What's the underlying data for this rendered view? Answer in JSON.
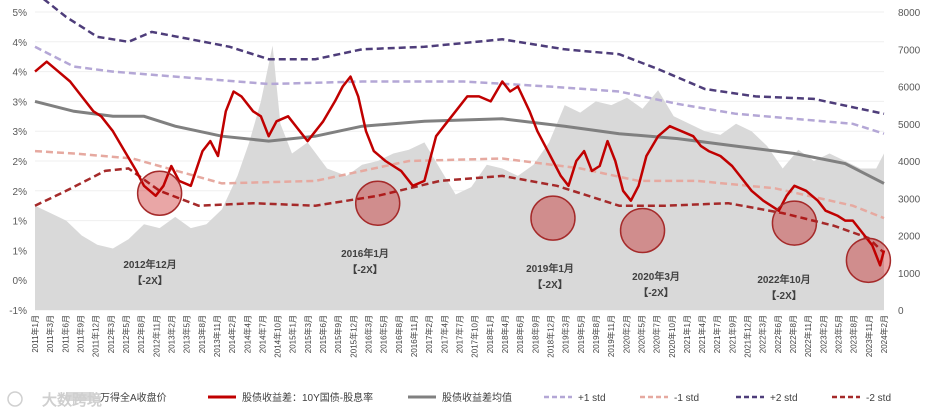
{
  "chart_data": {
    "type": "line",
    "x_labels": [
      "2011年1月",
      "2011年3月",
      "2011年6月",
      "2011年9月",
      "2011年12月",
      "2012年3月",
      "2012年5月",
      "2012年8月",
      "2012年11月",
      "2013年2月",
      "2013年5月",
      "2013年8月",
      "2013年11月",
      "2014年2月",
      "2014年4月",
      "2014年7月",
      "2014年10月",
      "2015年1月",
      "2015年3月",
      "2015年6月",
      "2015年9月",
      "2015年12月",
      "2016年3月",
      "2016年5月",
      "2016年8月",
      "2016年11月",
      "2017年2月",
      "2017年4月",
      "2017年7月",
      "2017年10月",
      "2018年1月",
      "2018年4月",
      "2018年6月",
      "2018年9月",
      "2018年12月",
      "2019年3月",
      "2019年5月",
      "2019年8月",
      "2019年11月",
      "2020年2月",
      "2020年5月",
      "2020年7月",
      "2020年10月",
      "2021年1月",
      "2021年4月",
      "2021年7月",
      "2021年9月",
      "2021年12月",
      "2022年3月",
      "2022年6月",
      "2022年8月",
      "2022年11月",
      "2023年2月",
      "2023年5月",
      "2023年8月",
      "2023年11月",
      "2024年2月"
    ],
    "left_axis": {
      "ticks": [
        "5%",
        "4%",
        "4%",
        "3%",
        "3%",
        "2%",
        "2%",
        "1%",
        "1%",
        "0%",
        "-1%"
      ]
    },
    "right_axis": {
      "ticks": [
        "8000",
        "7000",
        "6000",
        "5000",
        "4000",
        "3000",
        "2000",
        "1000",
        "0"
      ],
      "range": [
        0,
        8000
      ]
    },
    "left_range_pct": [
      -1,
      5
    ],
    "series": [
      {
        "name": "万得全A收盘价",
        "type": "area",
        "axis": "right",
        "color": "#d9d9d9",
        "points": [
          [
            0,
            2800
          ],
          [
            4,
            2600
          ],
          [
            8,
            2400
          ],
          [
            12,
            2000
          ],
          [
            16,
            1750
          ],
          [
            20,
            1650
          ],
          [
            24,
            1900
          ],
          [
            28,
            2300
          ],
          [
            32,
            2200
          ],
          [
            36,
            2500
          ],
          [
            40,
            2200
          ],
          [
            44,
            2300
          ],
          [
            48,
            2700
          ],
          [
            52,
            3600
          ],
          [
            55,
            4500
          ],
          [
            58,
            5600
          ],
          [
            61,
            7100
          ],
          [
            63,
            5000
          ],
          [
            66,
            4200
          ],
          [
            70,
            4500
          ],
          [
            75,
            3800
          ],
          [
            80,
            3600
          ],
          [
            84,
            3900
          ],
          [
            88,
            4000
          ],
          [
            92,
            4200
          ],
          [
            96,
            4300
          ],
          [
            100,
            4500
          ],
          [
            104,
            3800
          ],
          [
            108,
            3100
          ],
          [
            112,
            3300
          ],
          [
            116,
            3900
          ],
          [
            120,
            3800
          ],
          [
            124,
            3600
          ],
          [
            128,
            3900
          ],
          [
            132,
            4500
          ],
          [
            136,
            5500
          ],
          [
            140,
            5300
          ],
          [
            144,
            5600
          ],
          [
            148,
            5500
          ],
          [
            152,
            5700
          ],
          [
            156,
            5400
          ],
          [
            160,
            5900
          ],
          [
            164,
            5200
          ],
          [
            168,
            5000
          ],
          [
            172,
            4800
          ],
          [
            176,
            4700
          ],
          [
            180,
            5000
          ],
          [
            184,
            4800
          ],
          [
            188,
            4400
          ],
          [
            192,
            3800
          ],
          [
            196,
            4300
          ],
          [
            200,
            4000
          ],
          [
            204,
            4200
          ],
          [
            208,
            4000
          ],
          [
            212,
            3800
          ],
          [
            216,
            3800
          ],
          [
            218,
            4200
          ]
        ]
      },
      {
        "name": "股债收益差：10Y国债-股息率",
        "type": "line",
        "axis": "left",
        "color": "#c00000",
        "points": [
          [
            0,
            3.8
          ],
          [
            3,
            4.0
          ],
          [
            6,
            3.8
          ],
          [
            9,
            3.6
          ],
          [
            12,
            3.3
          ],
          [
            15,
            3.0
          ],
          [
            17,
            2.9
          ],
          [
            20,
            2.6
          ],
          [
            23,
            2.2
          ],
          [
            26,
            1.8
          ],
          [
            28,
            1.5
          ],
          [
            31,
            1.3
          ],
          [
            33,
            1.5
          ],
          [
            35,
            1.9
          ],
          [
            37,
            1.6
          ],
          [
            40,
            1.5
          ],
          [
            43,
            2.2
          ],
          [
            45,
            2.4
          ],
          [
            47,
            2.1
          ],
          [
            49,
            3.0
          ],
          [
            51,
            3.4
          ],
          [
            53,
            3.3
          ],
          [
            56,
            3.0
          ],
          [
            58,
            2.9
          ],
          [
            60,
            2.5
          ],
          [
            62,
            2.8
          ],
          [
            65,
            2.9
          ],
          [
            68,
            2.6
          ],
          [
            70,
            2.4
          ],
          [
            72,
            2.6
          ],
          [
            74,
            2.8
          ],
          [
            77,
            3.2
          ],
          [
            79,
            3.5
          ],
          [
            81,
            3.7
          ],
          [
            83,
            3.3
          ],
          [
            85,
            2.6
          ],
          [
            87,
            2.2
          ],
          [
            90,
            2.0
          ],
          [
            92,
            1.9
          ],
          [
            94,
            1.8
          ],
          [
            97,
            1.5
          ],
          [
            100,
            1.6
          ],
          [
            103,
            2.5
          ],
          [
            105,
            2.7
          ],
          [
            108,
            3.0
          ],
          [
            111,
            3.3
          ],
          [
            114,
            3.3
          ],
          [
            117,
            3.2
          ],
          [
            120,
            3.6
          ],
          [
            122,
            3.4
          ],
          [
            124,
            3.5
          ],
          [
            127,
            3.0
          ],
          [
            129,
            2.6
          ],
          [
            131,
            2.3
          ],
          [
            133,
            2.0
          ],
          [
            135,
            1.7
          ],
          [
            137,
            1.5
          ],
          [
            139,
            2.0
          ],
          [
            141,
            2.2
          ],
          [
            143,
            1.8
          ],
          [
            145,
            1.9
          ],
          [
            147,
            2.4
          ],
          [
            149,
            2.0
          ],
          [
            151,
            1.4
          ],
          [
            153,
            1.2
          ],
          [
            155,
            1.5
          ],
          [
            157,
            2.1
          ],
          [
            160,
            2.5
          ],
          [
            163,
            2.7
          ],
          [
            166,
            2.6
          ],
          [
            169,
            2.5
          ],
          [
            171,
            2.3
          ],
          [
            173,
            2.2
          ],
          [
            176,
            2.1
          ],
          [
            179,
            1.9
          ],
          [
            181,
            1.7
          ],
          [
            184,
            1.4
          ],
          [
            187,
            1.2
          ],
          [
            189,
            1.1
          ],
          [
            191,
            1.0
          ],
          [
            193,
            1.3
          ],
          [
            195,
            1.5
          ],
          [
            198,
            1.4
          ],
          [
            201,
            1.2
          ],
          [
            203,
            1.0
          ],
          [
            206,
            0.9
          ],
          [
            208,
            0.8
          ],
          [
            210,
            0.8
          ],
          [
            212,
            0.6
          ],
          [
            215,
            0.3
          ],
          [
            217,
            -0.1
          ],
          [
            218,
            0.2
          ]
        ]
      },
      {
        "name": "股债收益差均值",
        "type": "line",
        "axis": "left",
        "color": "#808080",
        "points": [
          [
            0,
            3.2
          ],
          [
            10,
            3.0
          ],
          [
            20,
            2.9
          ],
          [
            28,
            2.9
          ],
          [
            36,
            2.7
          ],
          [
            48,
            2.5
          ],
          [
            60,
            2.4
          ],
          [
            72,
            2.5
          ],
          [
            84,
            2.7
          ],
          [
            100,
            2.8
          ],
          [
            120,
            2.85
          ],
          [
            136,
            2.7
          ],
          [
            150,
            2.55
          ],
          [
            165,
            2.45
          ],
          [
            180,
            2.3
          ],
          [
            195,
            2.15
          ],
          [
            208,
            1.95
          ],
          [
            218,
            1.55
          ]
        ]
      },
      {
        "name": "+1 std",
        "type": "dash",
        "axis": "left",
        "color": "#b4a7d6",
        "points": [
          [
            0,
            4.3
          ],
          [
            10,
            3.9
          ],
          [
            20,
            3.8
          ],
          [
            36,
            3.7
          ],
          [
            60,
            3.55
          ],
          [
            84,
            3.6
          ],
          [
            110,
            3.6
          ],
          [
            132,
            3.5
          ],
          [
            150,
            3.4
          ],
          [
            165,
            3.15
          ],
          [
            180,
            2.95
          ],
          [
            195,
            2.85
          ],
          [
            210,
            2.75
          ],
          [
            218,
            2.55
          ]
        ]
      },
      {
        "name": "-1 std",
        "type": "dash",
        "axis": "left",
        "color": "#e6a9a0",
        "points": [
          [
            0,
            2.2
          ],
          [
            10,
            2.15
          ],
          [
            25,
            2.05
          ],
          [
            48,
            1.55
          ],
          [
            72,
            1.6
          ],
          [
            96,
            2.0
          ],
          [
            120,
            2.05
          ],
          [
            140,
            1.85
          ],
          [
            155,
            1.6
          ],
          [
            170,
            1.6
          ],
          [
            190,
            1.45
          ],
          [
            210,
            1.1
          ],
          [
            218,
            0.85
          ]
        ]
      },
      {
        "name": "+2 std",
        "type": "dash",
        "axis": "left",
        "color": "#4e3d7a",
        "points": [
          [
            0,
            5.4
          ],
          [
            8,
            4.9
          ],
          [
            16,
            4.5
          ],
          [
            24,
            4.4
          ],
          [
            30,
            4.6
          ],
          [
            40,
            4.45
          ],
          [
            50,
            4.3
          ],
          [
            60,
            4.05
          ],
          [
            72,
            4.05
          ],
          [
            84,
            4.25
          ],
          [
            100,
            4.3
          ],
          [
            120,
            4.45
          ],
          [
            136,
            4.25
          ],
          [
            150,
            4.15
          ],
          [
            160,
            3.85
          ],
          [
            172,
            3.45
          ],
          [
            185,
            3.3
          ],
          [
            200,
            3.25
          ],
          [
            212,
            3.05
          ],
          [
            218,
            2.95
          ]
        ]
      },
      {
        "name": "-2 std",
        "type": "dash",
        "axis": "left",
        "color": "#a52a2a",
        "points": [
          [
            0,
            1.1
          ],
          [
            8,
            1.4
          ],
          [
            18,
            1.8
          ],
          [
            24,
            1.85
          ],
          [
            32,
            1.4
          ],
          [
            42,
            1.1
          ],
          [
            56,
            1.15
          ],
          [
            72,
            1.1
          ],
          [
            88,
            1.3
          ],
          [
            104,
            1.6
          ],
          [
            120,
            1.7
          ],
          [
            134,
            1.5
          ],
          [
            150,
            1.1
          ],
          [
            162,
            1.1
          ],
          [
            178,
            1.15
          ],
          [
            192,
            0.95
          ],
          [
            205,
            0.7
          ],
          [
            214,
            0.45
          ],
          [
            218,
            0.15
          ]
        ]
      }
    ],
    "circles": [
      [
        32,
        1.35
      ],
      [
        88,
        1.15
      ],
      [
        133,
        0.85
      ],
      [
        156,
        0.6
      ],
      [
        195,
        0.75
      ],
      [
        214,
        0.0
      ]
    ],
    "annotations": [
      {
        "title": "2012年12月",
        "sub": "【-2X】"
      },
      {
        "title": "2016年1月",
        "sub": "【-2X】"
      },
      {
        "title": "2019年1月",
        "sub": "【-2X】"
      },
      {
        "title": "2020年3月",
        "sub": "【-2X】"
      },
      {
        "title": "2022年10月",
        "sub": "【-2X】"
      }
    ],
    "legend": [
      "万得全A收盘价",
      "股债收益差：10Y国债-股息率",
      "股债收益差均值",
      "+1 std",
      "-1 std",
      "+2 std",
      "-2 std"
    ]
  },
  "watermark": "大数跨境"
}
